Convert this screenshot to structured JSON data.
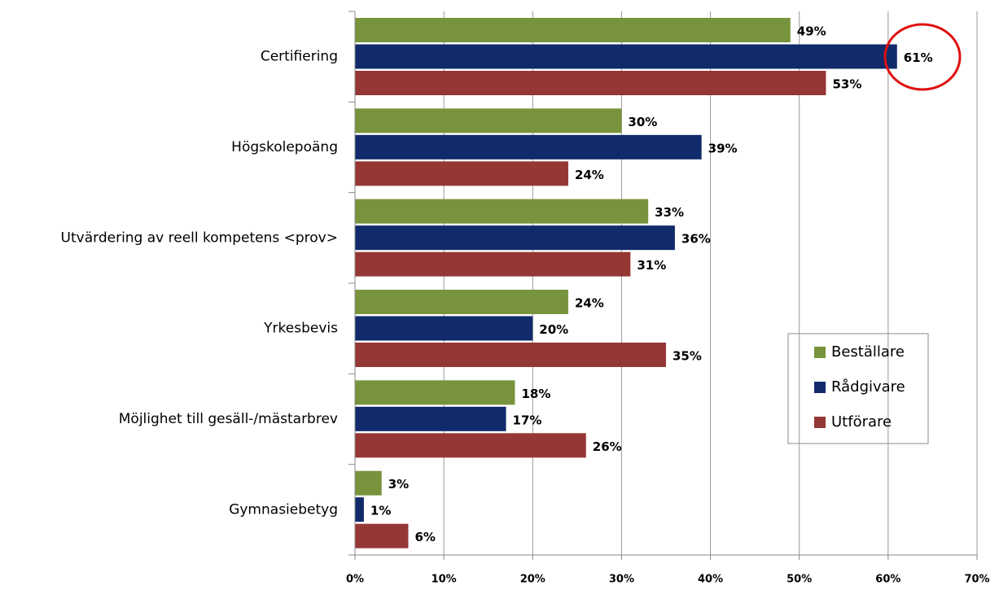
{
  "chart_data": {
    "type": "hbar",
    "categories": [
      "Certifiering",
      "Högskolepoäng",
      "Utvärdering av reell kompetens <prov>",
      "Yrkesbevis",
      "Möjlighet till gesäll-/mästarbrev",
      "Gymnasiebetyg"
    ],
    "series": [
      {
        "name": "Beställare",
        "color": "#77933c",
        "values": [
          49,
          30,
          33,
          24,
          18,
          3
        ],
        "value_labels": [
          "49%",
          "30%",
          "33%",
          "24%",
          "18%",
          "3%"
        ]
      },
      {
        "name": "Rådgivare",
        "color": "#102a6b",
        "values": [
          61,
          39,
          36,
          20,
          17,
          1
        ],
        "value_labels": [
          "61%",
          "39%",
          "36%",
          "20%",
          "17%",
          "1%"
        ]
      },
      {
        "name": "Utförare",
        "color": "#953735",
        "values": [
          53,
          24,
          31,
          35,
          26,
          6
        ],
        "value_labels": [
          "53%",
          "24%",
          "31%",
          "35%",
          "26%",
          "6%"
        ]
      }
    ],
    "xlim": [
      0,
      70
    ],
    "xticks": [
      {
        "value": 0,
        "label": "0%"
      },
      {
        "value": 10,
        "label": "10%"
      },
      {
        "value": 20,
        "label": "20%"
      },
      {
        "value": 30,
        "label": "30%"
      },
      {
        "value": 40,
        "label": "40%"
      },
      {
        "value": 50,
        "label": "50%"
      },
      {
        "value": 60,
        "label": "60%"
      },
      {
        "value": 70,
        "label": "70%"
      }
    ],
    "grid": true,
    "legend": "right"
  }
}
